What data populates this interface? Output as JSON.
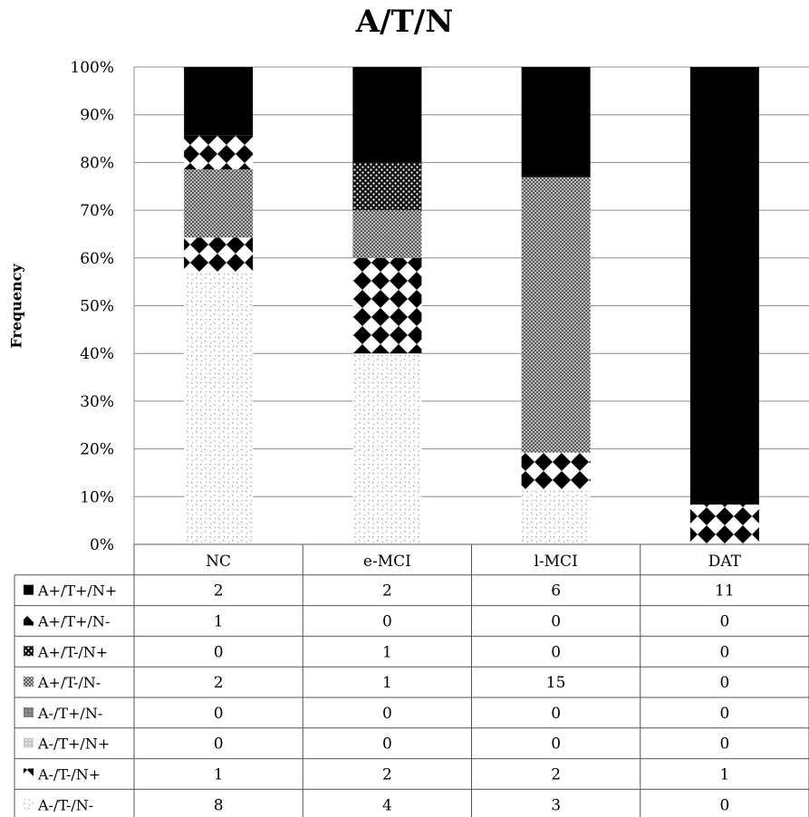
{
  "chart_data": {
    "type": "bar",
    "stacked": "percent",
    "title": "A/T/N",
    "ylabel": "Frequency",
    "xlabel": "",
    "ylim": [
      0,
      100
    ],
    "yticks": [
      "0%",
      "10%",
      "20%",
      "30%",
      "40%",
      "50%",
      "60%",
      "70%",
      "80%",
      "90%",
      "100%"
    ],
    "categories": [
      "NC",
      "e-MCI",
      "l-MCI",
      "DAT"
    ],
    "grid": true,
    "legend": "data-table-below",
    "series": [
      {
        "name": "A-/T-/N-",
        "pattern": "sparse-dots",
        "values": [
          8,
          4,
          3,
          0
        ]
      },
      {
        "name": "A-/T-/N+",
        "pattern": "bowtie",
        "values": [
          1,
          2,
          2,
          1
        ]
      },
      {
        "name": "A-/T+/N+",
        "pattern": "light-gray",
        "values": [
          0,
          0,
          0,
          0
        ]
      },
      {
        "name": "A-/T+/N-",
        "pattern": "gray",
        "values": [
          0,
          0,
          0,
          0
        ]
      },
      {
        "name": "A+/T-/N-",
        "pattern": "fine-gray",
        "values": [
          2,
          1,
          15,
          0
        ]
      },
      {
        "name": "A+/T-/N+",
        "pattern": "dense-dots",
        "values": [
          0,
          1,
          0,
          0
        ]
      },
      {
        "name": "A+/T+/N-",
        "pattern": "checker-diamond",
        "values": [
          1,
          0,
          0,
          0
        ]
      },
      {
        "name": "A+/T+/N+",
        "pattern": "solid-black",
        "values": [
          2,
          2,
          6,
          11
        ]
      }
    ],
    "table_row_order": [
      "A+/T+/N+",
      "A+/T+/N-",
      "A+/T-/N+",
      "A+/T-/N-",
      "A-/T+/N-",
      "A-/T+/N+",
      "A-/T-/N+",
      "A-/T-/N-"
    ]
  }
}
